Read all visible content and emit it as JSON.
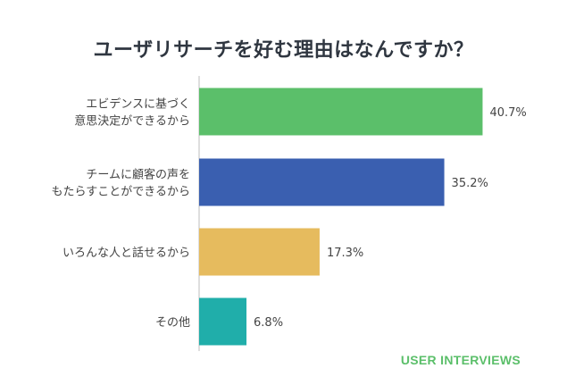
{
  "chart_data": {
    "type": "bar",
    "orientation": "horizontal",
    "title": "ユーザリサーチを好む理由はなんですか？",
    "categories": [
      [
        "エビデンスに基づく",
        "意思決定ができるから"
      ],
      [
        "チームに顧客の声を",
        "もたらすことができるから"
      ],
      [
        "いろんな人と話せるから"
      ],
      [
        "その他"
      ]
    ],
    "values": [
      40.7,
      35.2,
      17.3,
      6.8
    ],
    "value_labels": [
      "40.7%",
      "35.2%",
      "17.3%",
      "6.8%"
    ],
    "unit": "%",
    "xlim": [
      0,
      50
    ],
    "grid": false,
    "colors": [
      "#5bbf6a",
      "#3a5fb0",
      "#e6bb5e",
      "#20aeaa"
    ]
  },
  "brand": "USER INTERVIEWS"
}
